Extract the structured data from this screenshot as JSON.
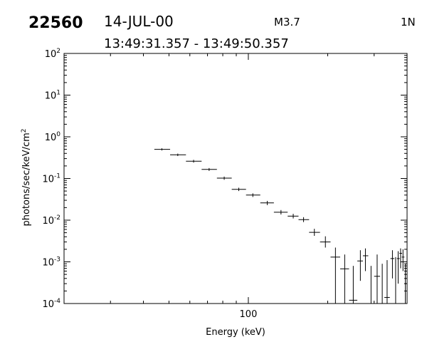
{
  "header": {
    "id": "22560",
    "date": "14-JUL-00",
    "flare_class": "M3.7",
    "position": "1N",
    "time_range": "13:49:31.357 - 13:49:50.357"
  },
  "chart_data": {
    "type": "scatter",
    "title": "",
    "xlabel": "Energy (keV)",
    "ylabel": "photons/sec/keV/cm",
    "ylabel_superscript": "2",
    "x_scale": "log",
    "y_scale": "log",
    "xlim": [
      20,
      400
    ],
    "ylim": [
      0.0001,
      100
    ],
    "x_tick_labels": [
      {
        "value": 100,
        "label": "100"
      }
    ],
    "y_tick_labels": [
      {
        "value": 100,
        "mantissa": "10",
        "exponent": "2"
      },
      {
        "value": 10,
        "mantissa": "10",
        "exponent": "1"
      },
      {
        "value": 1,
        "mantissa": "10",
        "exponent": "0"
      },
      {
        "value": 0.1,
        "mantissa": "10",
        "exponent": "-1"
      },
      {
        "value": 0.01,
        "mantissa": "10",
        "exponent": "-2"
      },
      {
        "value": 0.001,
        "mantissa": "10",
        "exponent": "-3"
      },
      {
        "value": 0.0001,
        "mantissa": "10",
        "exponent": "-4"
      }
    ],
    "grid": false,
    "legend": "none",
    "color": "#000000",
    "points": [
      {
        "x": 47.0,
        "xlo": 44.0,
        "xhi": 50.5,
        "y": 0.5,
        "ylo": 0.47,
        "yhi": 0.53
      },
      {
        "x": 54.0,
        "xlo": 50.5,
        "xhi": 58.0,
        "y": 0.37,
        "ylo": 0.345,
        "yhi": 0.395
      },
      {
        "x": 62.0,
        "xlo": 58.0,
        "xhi": 66.5,
        "y": 0.26,
        "ylo": 0.24,
        "yhi": 0.28
      },
      {
        "x": 71.0,
        "xlo": 66.5,
        "xhi": 76.0,
        "y": 0.165,
        "ylo": 0.152,
        "yhi": 0.178
      },
      {
        "x": 81.0,
        "xlo": 76.0,
        "xhi": 86.5,
        "y": 0.102,
        "ylo": 0.093,
        "yhi": 0.111
      },
      {
        "x": 92.0,
        "xlo": 86.5,
        "xhi": 98.0,
        "y": 0.055,
        "ylo": 0.05,
        "yhi": 0.06
      },
      {
        "x": 104.0,
        "xlo": 98.0,
        "xhi": 111.0,
        "y": 0.04,
        "ylo": 0.036,
        "yhi": 0.044
      },
      {
        "x": 118.0,
        "xlo": 111.0,
        "xhi": 125.0,
        "y": 0.026,
        "ylo": 0.023,
        "yhi": 0.029
      },
      {
        "x": 133.0,
        "xlo": 125.0,
        "xhi": 141.0,
        "y": 0.0155,
        "ylo": 0.0137,
        "yhi": 0.0175
      },
      {
        "x": 148.0,
        "xlo": 141.0,
        "xhi": 155.0,
        "y": 0.0125,
        "ylo": 0.011,
        "yhi": 0.0142
      },
      {
        "x": 162.0,
        "xlo": 155.0,
        "xhi": 170.0,
        "y": 0.0103,
        "ylo": 0.009,
        "yhi": 0.0118
      },
      {
        "x": 178.0,
        "xlo": 170.0,
        "xhi": 187.0,
        "y": 0.0051,
        "ylo": 0.0042,
        "yhi": 0.0062
      },
      {
        "x": 196.0,
        "xlo": 187.0,
        "xhi": 205.0,
        "y": 0.003,
        "ylo": 0.0022,
        "yhi": 0.0041
      },
      {
        "x": 214.0,
        "xlo": 205.0,
        "xhi": 223.0,
        "y": 0.0013,
        "ylo": 0.0001,
        "yhi": 0.0022
      },
      {
        "x": 232.0,
        "xlo": 223.0,
        "xhi": 241.0,
        "y": 0.00068,
        "ylo": 0.0001,
        "yhi": 0.0015
      },
      {
        "x": 250.0,
        "xlo": 241.0,
        "xhi": 259.0,
        "y": 0.00012,
        "ylo": 0.0001,
        "yhi": 0.0008
      },
      {
        "x": 266.0,
        "xlo": 259.0,
        "xhi": 272.0,
        "y": 0.00105,
        "ylo": 0.00035,
        "yhi": 0.0019
      },
      {
        "x": 278.0,
        "xlo": 272.0,
        "xhi": 285.0,
        "y": 0.0014,
        "ylo": 0.0006,
        "yhi": 0.0021
      },
      {
        "x": 292.0,
        "xlo": 285.0,
        "xhi": 300.0,
        "y": 0.0001,
        "ylo": 0.0001,
        "yhi": 0.0008
      },
      {
        "x": 308.0,
        "xlo": 300.0,
        "xhi": 316.0,
        "y": 0.00045,
        "ylo": 0.0001,
        "yhi": 0.0015
      },
      {
        "x": 322.0,
        "xlo": 316.0,
        "xhi": 328.0,
        "y": 0.0001,
        "ylo": 0.0001,
        "yhi": 0.0009
      },
      {
        "x": 336.0,
        "xlo": 328.0,
        "xhi": 344.0,
        "y": 0.00014,
        "ylo": 0.0001,
        "yhi": 0.0011
      },
      {
        "x": 352.0,
        "xlo": 346.0,
        "xhi": 358.0,
        "y": 0.0012,
        "ylo": 0.0004,
        "yhi": 0.0019
      },
      {
        "x": 362.0,
        "xlo": 356.0,
        "xhi": 368.0,
        "y": 0.0001,
        "ylo": 0.0001,
        "yhi": 0.0013
      },
      {
        "x": 370.0,
        "xlo": 366.0,
        "xhi": 375.0,
        "y": 0.0012,
        "ylo": 0.0003,
        "yhi": 0.0018
      },
      {
        "x": 378.0,
        "xlo": 374.0,
        "xhi": 383.0,
        "y": 0.0016,
        "ylo": 0.0007,
        "yhi": 0.0021
      },
      {
        "x": 386.0,
        "xlo": 382.0,
        "xhi": 391.0,
        "y": 0.0013,
        "ylo": 0.0006,
        "yhi": 0.002
      },
      {
        "x": 394.0,
        "xlo": 390.0,
        "xhi": 398.0,
        "y": 0.0003,
        "ylo": 0.0001,
        "yhi": 0.0009
      }
    ]
  }
}
